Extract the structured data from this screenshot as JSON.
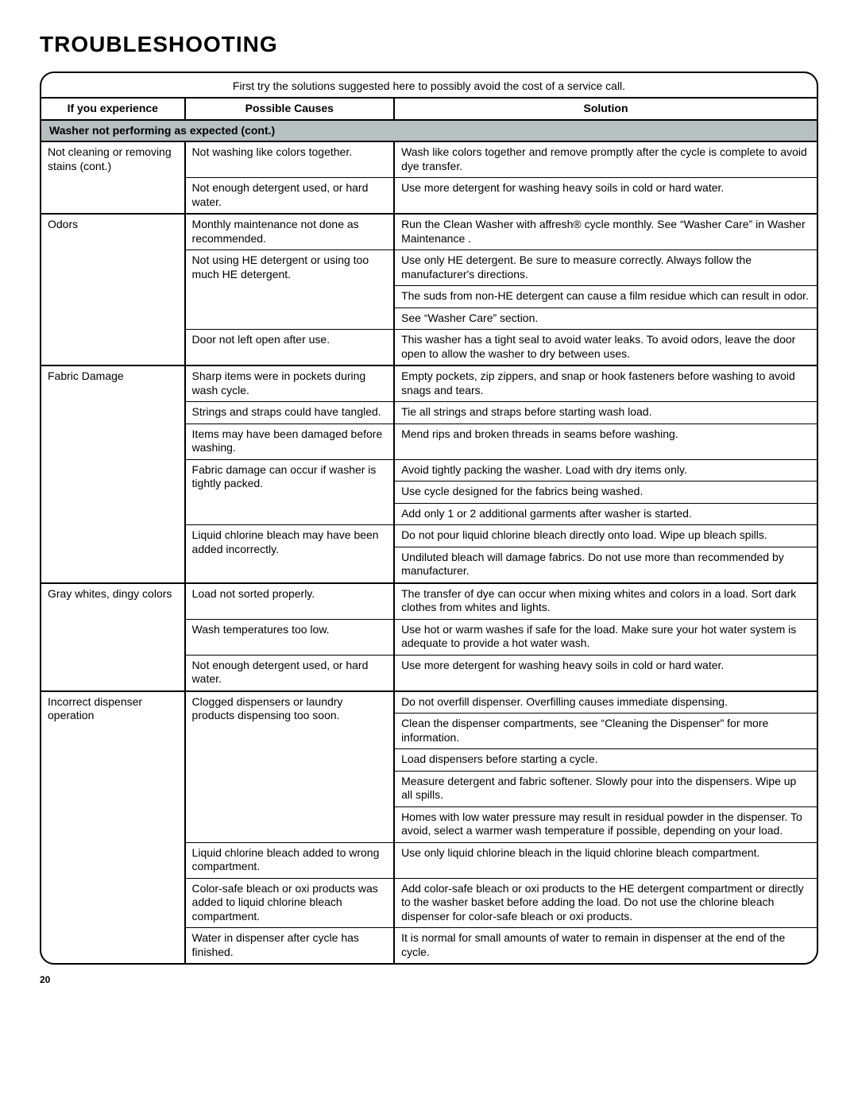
{
  "title": "TROUBLESHOOTING",
  "intro": "First try the solutions suggested here to possibly avoid the cost of a service call.",
  "headers": {
    "c1": "If you experience",
    "c2": "Possible Causes",
    "c3": "Solution"
  },
  "section": "Washer not performing as expected (cont.)",
  "pageNumber": "20",
  "colors": {
    "sectionBg": "#b7c0c1",
    "border": "#000000",
    "bg": "#ffffff",
    "text": "#000000"
  },
  "rows": [
    {
      "exp": "Not cleaning or removing stains (cont.)",
      "cause": "Not washing like colors together.",
      "sol": "Wash like colors together and remove promptly after the cycle is complete to avoid dye transfer."
    },
    {
      "exp": "",
      "cause": "Not enough detergent used, or hard water.",
      "sol": "Use more detergent for washing heavy soils in cold or hard water.",
      "groupEnd": true
    },
    {
      "exp": "Odors",
      "cause": "Monthly maintenance not done as recommended.",
      "sol": "Run the Clean Washer with affresh® cycle monthly. See “Washer Care” in Washer Maintenance ."
    },
    {
      "exp": "",
      "cause": "Not using HE detergent or using too much HE detergent.",
      "sol": "Use only HE detergent. Be sure to measure correctly. Always follow the manufacturer's directions."
    },
    {
      "exp": "",
      "cause": "",
      "sol": "The suds from non-HE detergent can cause a film residue which can result in odor."
    },
    {
      "exp": "",
      "cause": "",
      "sol": "See “Washer Care” section."
    },
    {
      "exp": "",
      "cause": "Door not left open after use.",
      "sol": "This washer has a tight seal to avoid water leaks. To avoid odors, leave the door open to allow the washer to dry between uses.",
      "groupEnd": true
    },
    {
      "exp": "Fabric Damage",
      "cause": "Sharp items were in pockets during wash cycle.",
      "sol": "Empty pockets, zip zippers, and snap or hook fasteners before washing to avoid snags and tears."
    },
    {
      "exp": "",
      "cause": "Strings and straps could have tangled.",
      "sol": "Tie all strings and straps before starting wash load."
    },
    {
      "exp": "",
      "cause": "Items may have been damaged before washing.",
      "sol": "Mend rips and broken threads in seams before washing."
    },
    {
      "exp": "",
      "cause": "Fabric damage can occur if washer is tightly packed.",
      "sol": "Avoid tightly packing the washer. Load with dry items only."
    },
    {
      "exp": "",
      "cause": "",
      "sol": "Use cycle designed for the fabrics being washed."
    },
    {
      "exp": "",
      "cause": "",
      "sol": "Add only 1 or 2 additional garments after washer is started."
    },
    {
      "exp": "",
      "cause": "Liquid chlorine bleach may have been added incorrectly.",
      "sol": "Do not pour liquid chlorine bleach directly onto load. Wipe up bleach spills."
    },
    {
      "exp": "",
      "cause": "",
      "sol": "Undiluted bleach will damage fabrics. Do not use more than recommended by manufacturer.",
      "groupEnd": true
    },
    {
      "exp": "Gray whites, dingy colors",
      "cause": "Load not sorted properly.",
      "sol": "The transfer of dye can occur when mixing whites and colors in a load. Sort dark clothes from whites and lights."
    },
    {
      "exp": "",
      "cause": "Wash temperatures too low.",
      "sol": "Use hot or warm washes if safe for the load. Make sure your hot water system is adequate to provide a hot water wash."
    },
    {
      "exp": "",
      "cause": "Not enough detergent used, or hard water.",
      "sol": "Use more detergent for washing heavy soils in cold or hard water.",
      "groupEnd": true
    },
    {
      "exp": "Incorrect dispenser operation",
      "cause": "Clogged dispensers or laundry products dispensing too soon.",
      "sol": "Do not overfill dispenser. Overfilling causes immediate dispensing."
    },
    {
      "exp": "",
      "cause": "",
      "sol": "Clean the dispenser compartments, see “Cleaning the Dispenser” for more information."
    },
    {
      "exp": "",
      "cause": "",
      "sol": "Load dispensers before starting a cycle."
    },
    {
      "exp": "",
      "cause": "",
      "sol": "Measure detergent and fabric softener. Slowly pour into the dispensers. Wipe up all spills."
    },
    {
      "exp": "",
      "cause": "",
      "sol": "Homes with low water pressure may result in residual powder in the dispenser. To avoid, select a warmer wash temperature if possible, depending on your load."
    },
    {
      "exp": "",
      "cause": "Liquid chlorine bleach added to wrong compartment.",
      "sol": "Use only liquid chlorine bleach in the liquid chlorine bleach compartment."
    },
    {
      "exp": "",
      "cause": "Color-safe bleach or oxi products was added to liquid chlorine bleach compartment.",
      "sol": "Add color-safe bleach or oxi products to the HE detergent compartment or directly to the washer basket before adding the load. Do not use the chlorine bleach dispenser for color-safe bleach or oxi products."
    },
    {
      "exp": "",
      "cause": "Water in dispenser after cycle has finished.",
      "sol": "It is normal for small amounts of water to remain in dispenser at the end of the cycle.",
      "last": true
    }
  ]
}
